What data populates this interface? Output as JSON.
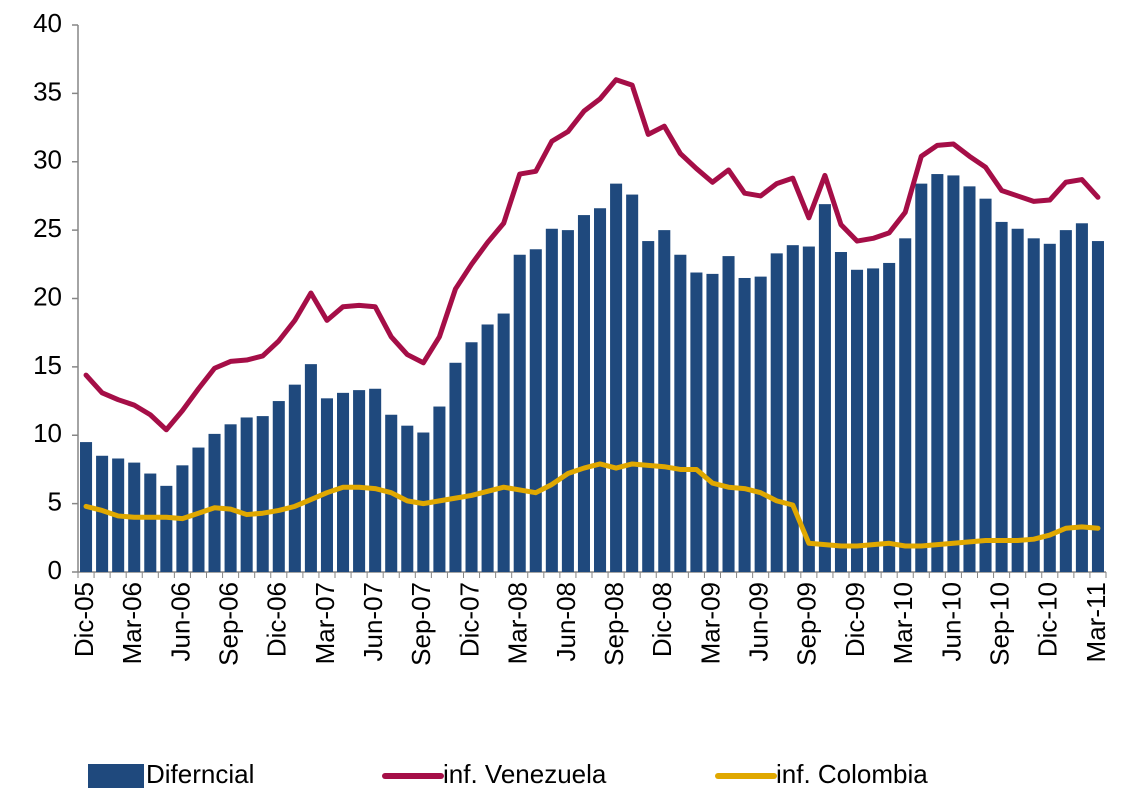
{
  "chart_data": {
    "type": "bar",
    "categories": [
      "Dic-05",
      null,
      null,
      "Mar-06",
      null,
      null,
      "Jun-06",
      null,
      null,
      "Sep-06",
      null,
      null,
      "Dic-06",
      null,
      null,
      "Mar-07",
      null,
      null,
      "Jun-07",
      null,
      null,
      "Sep-07",
      null,
      null,
      "Dic-07",
      null,
      null,
      "Mar-08",
      null,
      null,
      "Jun-08",
      null,
      null,
      "Sep-08",
      null,
      null,
      "Dic-08",
      null,
      null,
      "Mar-09",
      null,
      null,
      "Jun-09",
      null,
      null,
      "Sep-09",
      null,
      null,
      "Dic-09",
      null,
      null,
      "Mar-10",
      null,
      null,
      "Jun-10",
      null,
      null,
      "Sep-10",
      null,
      null,
      "Dic-10",
      null,
      null,
      "Mar-11"
    ],
    "series": [
      {
        "name": "Diferncial",
        "type": "bar",
        "color": "#1f497d",
        "values": [
          9.5,
          8.5,
          8.3,
          8.0,
          7.2,
          6.3,
          7.8,
          9.1,
          10.1,
          10.8,
          11.3,
          11.4,
          12.5,
          13.7,
          15.2,
          12.7,
          13.1,
          13.3,
          13.4,
          11.5,
          10.7,
          10.2,
          12.1,
          15.3,
          16.8,
          18.1,
          18.9,
          23.2,
          23.6,
          25.1,
          25.0,
          26.1,
          26.6,
          28.4,
          27.6,
          24.2,
          25.0,
          23.2,
          21.9,
          21.8,
          23.1,
          21.5,
          21.6,
          23.3,
          23.9,
          23.8,
          26.9,
          23.4,
          22.1,
          22.2,
          22.6,
          24.4,
          28.4,
          29.1,
          29.0,
          28.2,
          27.3,
          25.6,
          25.1,
          24.4,
          24.0,
          25.0,
          25.5,
          24.2
        ]
      },
      {
        "name": "inf. Venezuela",
        "type": "line",
        "color": "#a50e47",
        "values": [
          14.4,
          13.1,
          12.6,
          12.2,
          11.5,
          10.4,
          11.8,
          13.4,
          14.9,
          15.4,
          15.5,
          15.8,
          16.9,
          18.4,
          20.4,
          18.4,
          19.4,
          19.5,
          19.4,
          17.2,
          15.9,
          15.3,
          17.2,
          20.7,
          22.5,
          24.1,
          25.5,
          29.1,
          29.3,
          31.5,
          32.2,
          33.7,
          34.6,
          36.0,
          35.6,
          32.0,
          32.6,
          30.6,
          29.5,
          28.5,
          29.4,
          27.7,
          27.5,
          28.4,
          28.8,
          25.9,
          29.0,
          25.4,
          24.2,
          24.4,
          24.8,
          26.3,
          30.4,
          31.2,
          31.3,
          30.4,
          29.6,
          27.9,
          27.5,
          27.1,
          27.2,
          28.5,
          28.7,
          27.4
        ]
      },
      {
        "name": "inf. Colombia",
        "type": "line",
        "color": "#e0a800",
        "values": [
          4.8,
          4.5,
          4.1,
          4.0,
          4.0,
          4.0,
          3.9,
          4.3,
          4.7,
          4.6,
          4.2,
          4.3,
          4.5,
          4.8,
          5.3,
          5.8,
          6.2,
          6.2,
          6.1,
          5.8,
          5.2,
          5.0,
          5.2,
          5.4,
          5.6,
          5.9,
          6.2,
          6.0,
          5.8,
          6.4,
          7.2,
          7.6,
          7.9,
          7.6,
          7.9,
          7.8,
          7.7,
          7.5,
          7.5,
          6.5,
          6.2,
          6.1,
          5.8,
          5.2,
          4.9,
          2.1,
          2.0,
          1.9,
          1.9,
          2.0,
          2.1,
          1.9,
          1.9,
          2.0,
          2.1,
          2.2,
          2.3,
          2.3,
          2.3,
          2.4,
          2.7,
          3.2,
          3.3,
          3.2
        ]
      }
    ],
    "ylim": [
      0,
      40
    ],
    "yticks": [
      0,
      5,
      10,
      15,
      20,
      25,
      30,
      35,
      40
    ],
    "grid": false,
    "legend": "bottom"
  }
}
